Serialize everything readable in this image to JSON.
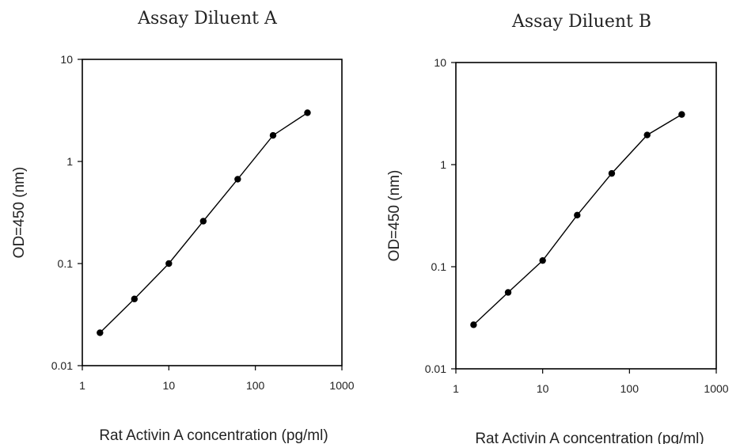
{
  "chart_data": [
    {
      "type": "line",
      "title": "Assay Diluent A",
      "xlabel": "Rat Activin A concentration (pg/ml)",
      "ylabel": "OD=450 (nm)",
      "xscale": "log",
      "yscale": "log",
      "xlim": [
        1,
        1000
      ],
      "ylim": [
        0.01,
        10
      ],
      "x_ticks": [
        "1",
        "10",
        "100",
        "1000"
      ],
      "y_ticks": [
        "0.01",
        "0.1",
        "1",
        "10"
      ],
      "grid": false,
      "legend": "none",
      "series": [
        {
          "x": [
            1.6,
            4,
            10,
            25,
            62.5,
            160,
            400
          ],
          "y": [
            0.021,
            0.045,
            0.1,
            0.26,
            0.67,
            1.8,
            3.0
          ]
        }
      ]
    },
    {
      "type": "line",
      "title": "Assay Diluent B",
      "xlabel": "Rat Activin A concentration (pg/ml)",
      "ylabel": "OD=450 (nm)",
      "xscale": "log",
      "yscale": "log",
      "xlim": [
        1,
        1000
      ],
      "ylim": [
        0.01,
        10
      ],
      "x_ticks": [
        "1",
        "10",
        "100",
        "1000"
      ],
      "y_ticks": [
        "0.01",
        "0.1",
        "1",
        "10"
      ],
      "grid": false,
      "legend": "none",
      "series": [
        {
          "x": [
            1.6,
            4,
            10,
            25,
            62.5,
            160,
            400
          ],
          "y": [
            0.027,
            0.056,
            0.115,
            0.32,
            0.82,
            1.95,
            3.1
          ]
        }
      ]
    }
  ]
}
